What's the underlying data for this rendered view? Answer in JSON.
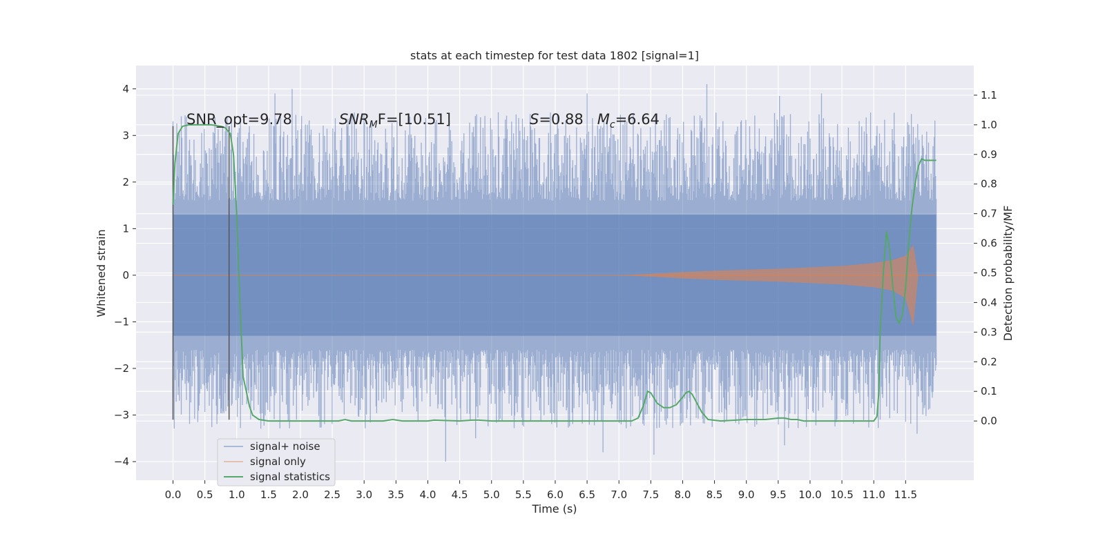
{
  "chart_data": {
    "type": "line",
    "title": "stats at each timestep for test data 1802 [signal=1]",
    "xlabel": "Time (s)",
    "ylabel_left": "Whitened strain",
    "ylabel_right": "Detection probability/MF",
    "xlim": [
      -0.58,
      12.57
    ],
    "ylim_left": [
      -4.4,
      4.5
    ],
    "ylim_right": [
      -0.2,
      1.2
    ],
    "x_ticks": [
      "0.0",
      "0.5",
      "1.0",
      "1.5",
      "2.0",
      "2.5",
      "3.0",
      "3.5",
      "4.0",
      "4.5",
      "5.0",
      "5.5",
      "6.0",
      "6.5",
      "7.0",
      "7.5",
      "8.0",
      "8.5",
      "9.0",
      "9.5",
      "10.0",
      "10.5",
      "11.0",
      "11.5"
    ],
    "y_left_ticks": [
      "4",
      "3",
      "2",
      "1",
      "0",
      "−1",
      "−2",
      "−3",
      "−4"
    ],
    "y_right_ticks": [
      "1.1",
      "1.0",
      "0.9",
      "0.8",
      "0.7",
      "0.6",
      "0.5",
      "0.4",
      "0.3",
      "0.2",
      "0.1",
      "0.0"
    ],
    "grid": true,
    "legend_position": "lower-left",
    "annotations": {
      "snr_opt": "SNR_opt=9.78",
      "snr_mf_sym": "SNR",
      "snr_mf_sub": "M",
      "snr_mf_rest": "F=[10.51]",
      "s_sym": "S",
      "s_val": "=0.88",
      "mc_sym": "M",
      "mc_sub": "c",
      "mc_val": "=6.64"
    },
    "vlines": [
      0.0,
      0.88
    ],
    "vline_range": [
      -3.1,
      3.2
    ],
    "series": [
      {
        "name": "signal+ noise",
        "color": "#4c72b0",
        "axis": "left",
        "x_range": [
          0.0,
          11.98
        ],
        "band": [
          -1.3,
          1.3
        ],
        "notable_peaks": [
          {
            "x": 1.6,
            "y": 3.9
          },
          {
            "x": 1.87,
            "y": 4.0
          },
          {
            "x": 6.5,
            "y": 3.9
          },
          {
            "x": 8.38,
            "y": 4.1
          },
          {
            "x": 9.52,
            "y": 3.85
          },
          {
            "x": 10.18,
            "y": 3.9
          },
          {
            "x": 4.28,
            "y": -4.0
          },
          {
            "x": 4.75,
            "y": -3.5
          },
          {
            "x": 7.55,
            "y": -3.85
          },
          {
            "x": 11.68,
            "y": -3.4
          },
          {
            "x": 9.6,
            "y": -3.65
          },
          {
            "x": 6.75,
            "y": -3.8
          }
        ]
      },
      {
        "name": "signal only",
        "color": "#dd8452",
        "axis": "left",
        "envelope": {
          "x": [
            0.0,
            7.0,
            7.5,
            8.0,
            8.5,
            9.0,
            9.5,
            10.0,
            10.5,
            11.0,
            11.3,
            11.5,
            11.62,
            11.7,
            11.98
          ],
          "upper": [
            0.0,
            0.0,
            0.03,
            0.07,
            0.1,
            0.12,
            0.14,
            0.17,
            0.2,
            0.26,
            0.33,
            0.42,
            0.65,
            0.0,
            0.0
          ],
          "lower": [
            0.0,
            0.0,
            -0.03,
            -0.07,
            -0.1,
            -0.12,
            -0.14,
            -0.17,
            -0.2,
            -0.26,
            -0.33,
            -0.5,
            -1.1,
            0.0,
            0.0
          ]
        }
      },
      {
        "name": "signal statistics",
        "color": "#55a868",
        "axis": "right",
        "x": [
          0.0,
          0.03,
          0.08,
          0.15,
          0.25,
          0.4,
          0.6,
          0.75,
          0.82,
          0.9,
          0.95,
          1.0,
          1.05,
          1.1,
          1.15,
          1.2,
          1.25,
          1.35,
          1.5,
          1.7,
          2.0,
          2.4,
          2.6,
          2.7,
          2.8,
          3.0,
          3.3,
          3.45,
          3.6,
          4.0,
          4.1,
          4.5,
          4.7,
          4.8,
          5.0,
          5.5,
          6.0,
          6.5,
          7.0,
          7.2,
          7.3,
          7.38,
          7.45,
          7.5,
          7.6,
          7.7,
          7.8,
          7.9,
          8.0,
          8.05,
          8.1,
          8.15,
          8.2,
          8.3,
          8.4,
          8.6,
          9.0,
          9.3,
          9.5,
          9.6,
          9.7,
          9.8,
          9.9,
          10.0,
          10.5,
          11.0,
          11.05,
          11.08,
          11.1,
          11.15,
          11.2,
          11.25,
          11.3,
          11.35,
          11.4,
          11.45,
          11.5,
          11.55,
          11.6,
          11.65,
          11.7,
          11.75,
          11.8,
          11.85,
          11.9,
          11.98
        ],
        "y": [
          0.73,
          0.87,
          0.97,
          0.995,
          1.0,
          1.0,
          1.0,
          0.995,
          0.99,
          0.97,
          0.9,
          0.7,
          0.4,
          0.15,
          0.1,
          0.05,
          0.02,
          0.005,
          0.0,
          0.0,
          0.0,
          0.0,
          0.0,
          0.005,
          0.0,
          0.0,
          0.0,
          0.005,
          0.0,
          0.0,
          0.003,
          0.0,
          0.003,
          0.003,
          0.0,
          0.0,
          0.0,
          0.0,
          0.0,
          0.0,
          0.01,
          0.05,
          0.1,
          0.095,
          0.06,
          0.045,
          0.045,
          0.055,
          0.08,
          0.095,
          0.1,
          0.09,
          0.07,
          0.03,
          0.005,
          0.0,
          0.005,
          0.005,
          0.01,
          0.01,
          0.005,
          0.005,
          0.0,
          0.0,
          0.0,
          0.0,
          0.015,
          0.1,
          0.3,
          0.5,
          0.64,
          0.58,
          0.45,
          0.35,
          0.33,
          0.36,
          0.45,
          0.6,
          0.72,
          0.8,
          0.86,
          0.885,
          0.88,
          0.88,
          0.88,
          0.88
        ]
      }
    ]
  }
}
